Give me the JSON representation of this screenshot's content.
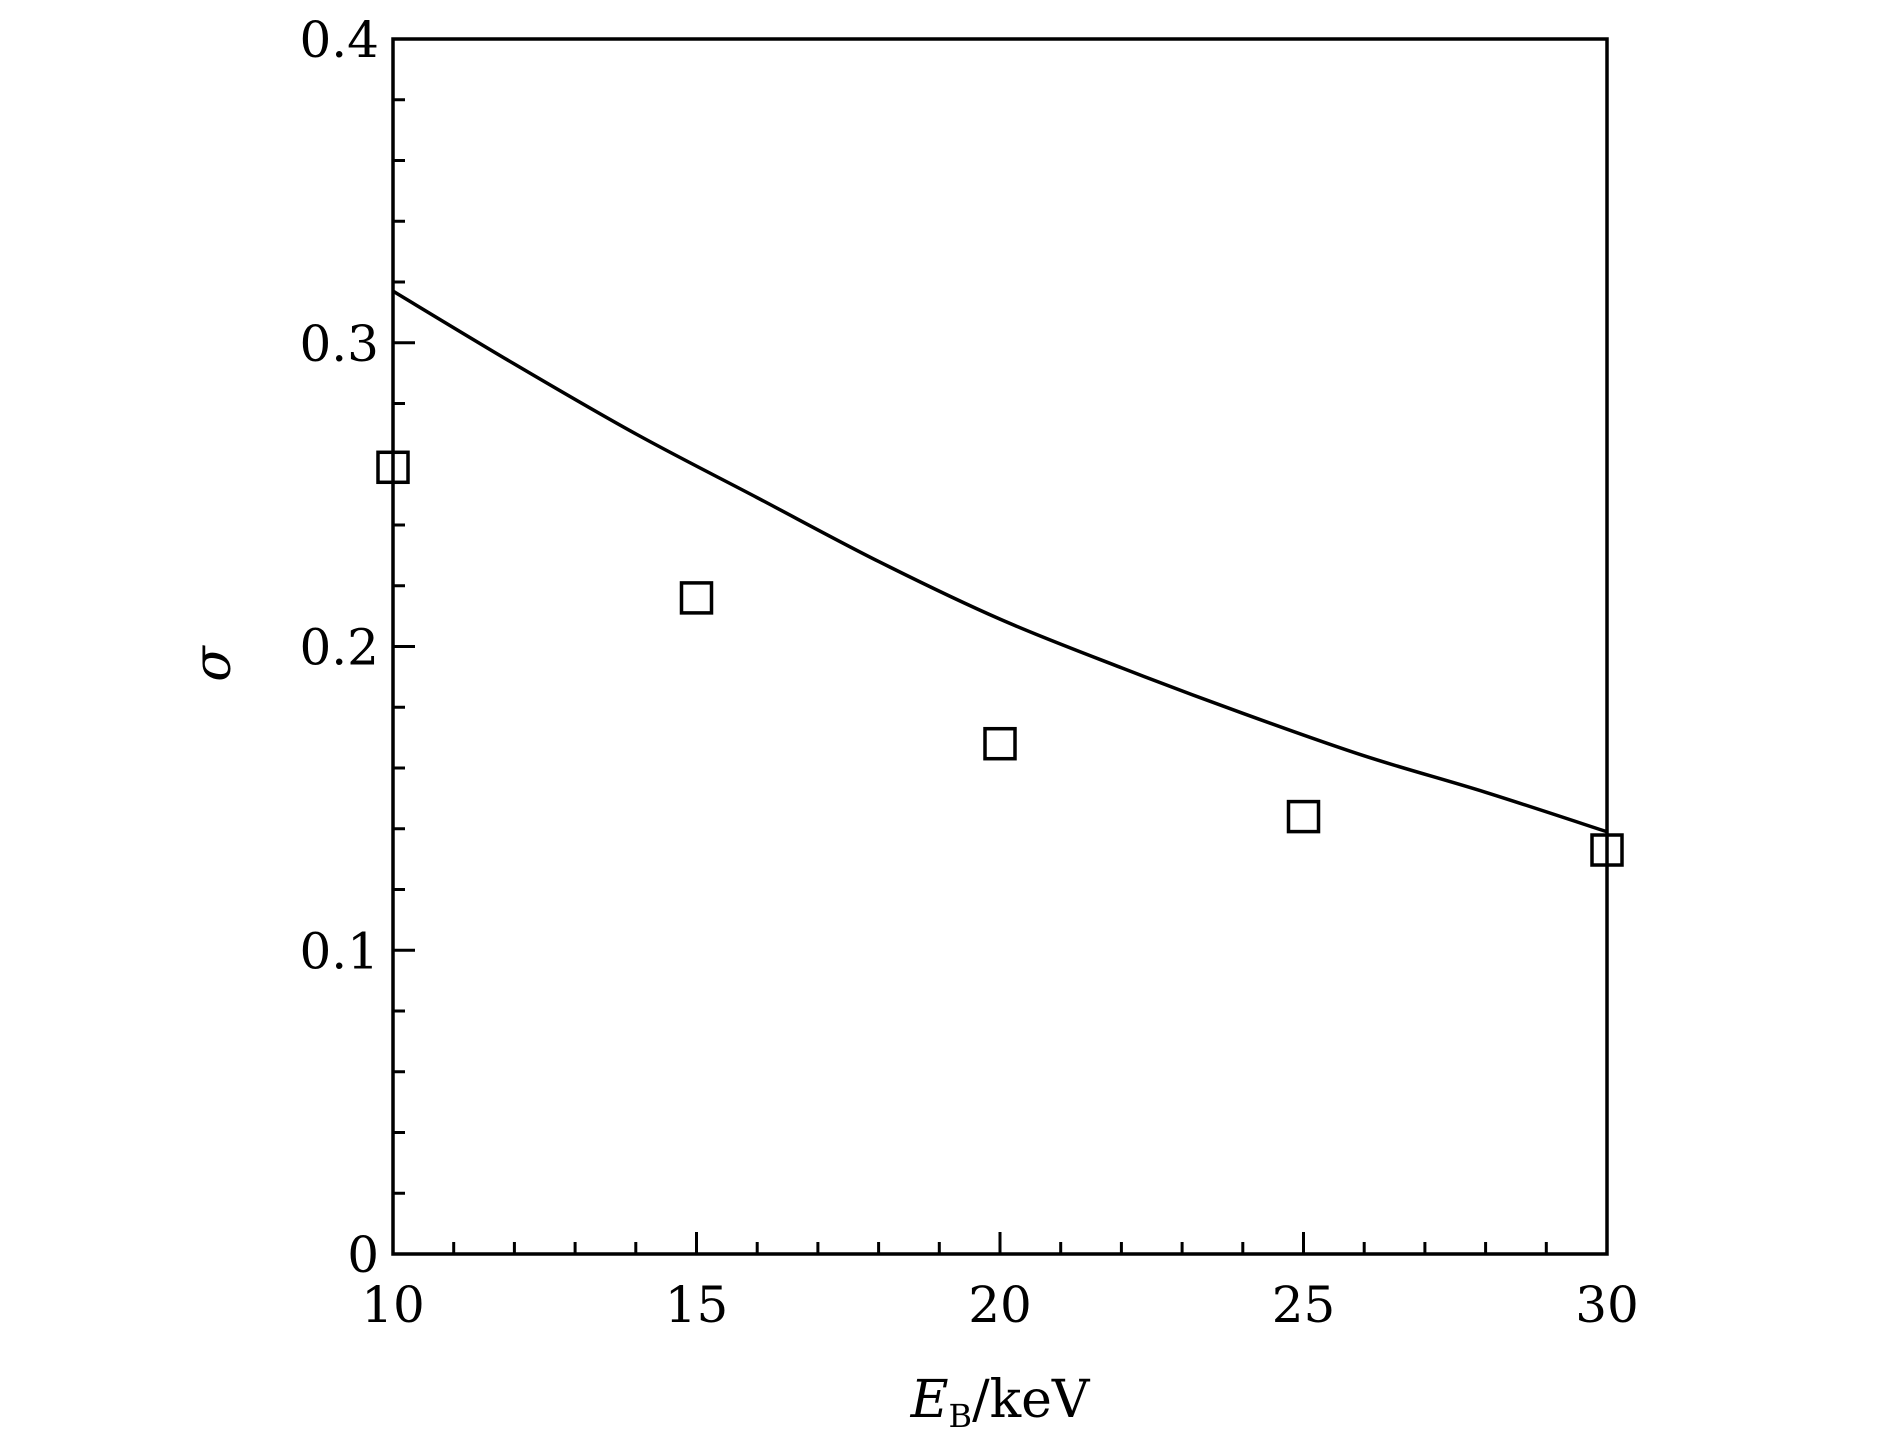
{
  "chart_data": {
    "type": "line",
    "title": "",
    "xlabel": {
      "main": "E",
      "subscript": "B",
      "suffix": "/keV"
    },
    "ylabel": "σ",
    "xlim": [
      10,
      30
    ],
    "ylim": [
      0,
      0.4
    ],
    "xticks": [
      {
        "value": 10,
        "label": "10"
      },
      {
        "value": 15,
        "label": "15"
      },
      {
        "value": 20,
        "label": "20"
      },
      {
        "value": 25,
        "label": "25"
      },
      {
        "value": 30,
        "label": "30"
      }
    ],
    "yticks": [
      {
        "value": 0,
        "label": "0"
      },
      {
        "value": 0.1,
        "label": "0.1"
      },
      {
        "value": 0.2,
        "label": "0.2"
      },
      {
        "value": 0.3,
        "label": "0.3"
      },
      {
        "value": 0.4,
        "label": "0.4"
      }
    ],
    "x_minor_step": 1,
    "y_minor_step": 0.02,
    "grid": false,
    "legend": "none",
    "series": [
      {
        "kind": "line",
        "x": [
          10,
          12,
          14,
          16,
          18,
          20,
          22,
          24,
          26,
          28,
          30
        ],
        "y": [
          0.317,
          0.293,
          0.27,
          0.249,
          0.228,
          0.209,
          0.193,
          0.178,
          0.164,
          0.152,
          0.139
        ],
        "color": "#000000"
      },
      {
        "kind": "scatter",
        "marker": "open-square",
        "x": [
          10,
          15,
          20,
          25,
          30
        ],
        "y": [
          0.259,
          0.216,
          0.168,
          0.144,
          0.133
        ],
        "color": "#000000"
      }
    ]
  }
}
